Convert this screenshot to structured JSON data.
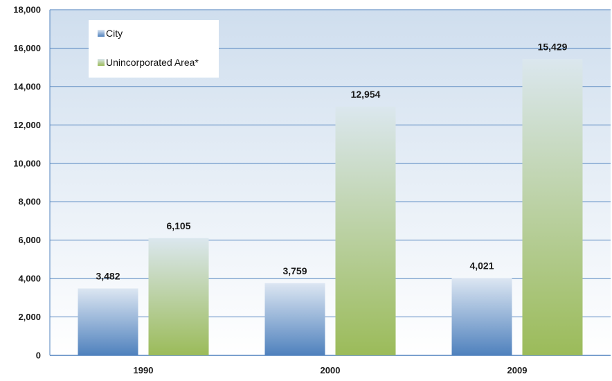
{
  "chart_data": {
    "type": "bar",
    "title": "",
    "xlabel": "",
    "ylabel": "",
    "categories": [
      "1990",
      "2000",
      "2009"
    ],
    "series": [
      {
        "name": "City",
        "values": [
          3482,
          3759,
          4021
        ],
        "labels": [
          "3,482",
          "3,759",
          "4,021"
        ],
        "color_top": "#dce6f2",
        "color_bottom": "#4f81bd"
      },
      {
        "name": "Unincorporated Area*",
        "values": [
          6105,
          12954,
          15429
        ],
        "labels": [
          "6,105",
          "12,954",
          "15,429"
        ],
        "color_top": "#dbe7ee",
        "color_bottom": "#9bbb59"
      }
    ],
    "ylim": [
      0,
      18000
    ],
    "yticks": [
      0,
      2000,
      4000,
      6000,
      8000,
      10000,
      12000,
      14000,
      16000,
      18000
    ],
    "ytick_labels": [
      "0",
      "2,000",
      "4,000",
      "6,000",
      "8,000",
      "10,000",
      "12,000",
      "14,000",
      "16,000",
      "18,000"
    ],
    "grid": true,
    "legend_position": "top-left",
    "background_gradient": [
      "#cfdeee",
      "#ffffff"
    ],
    "grid_color": "#4f81bd"
  }
}
